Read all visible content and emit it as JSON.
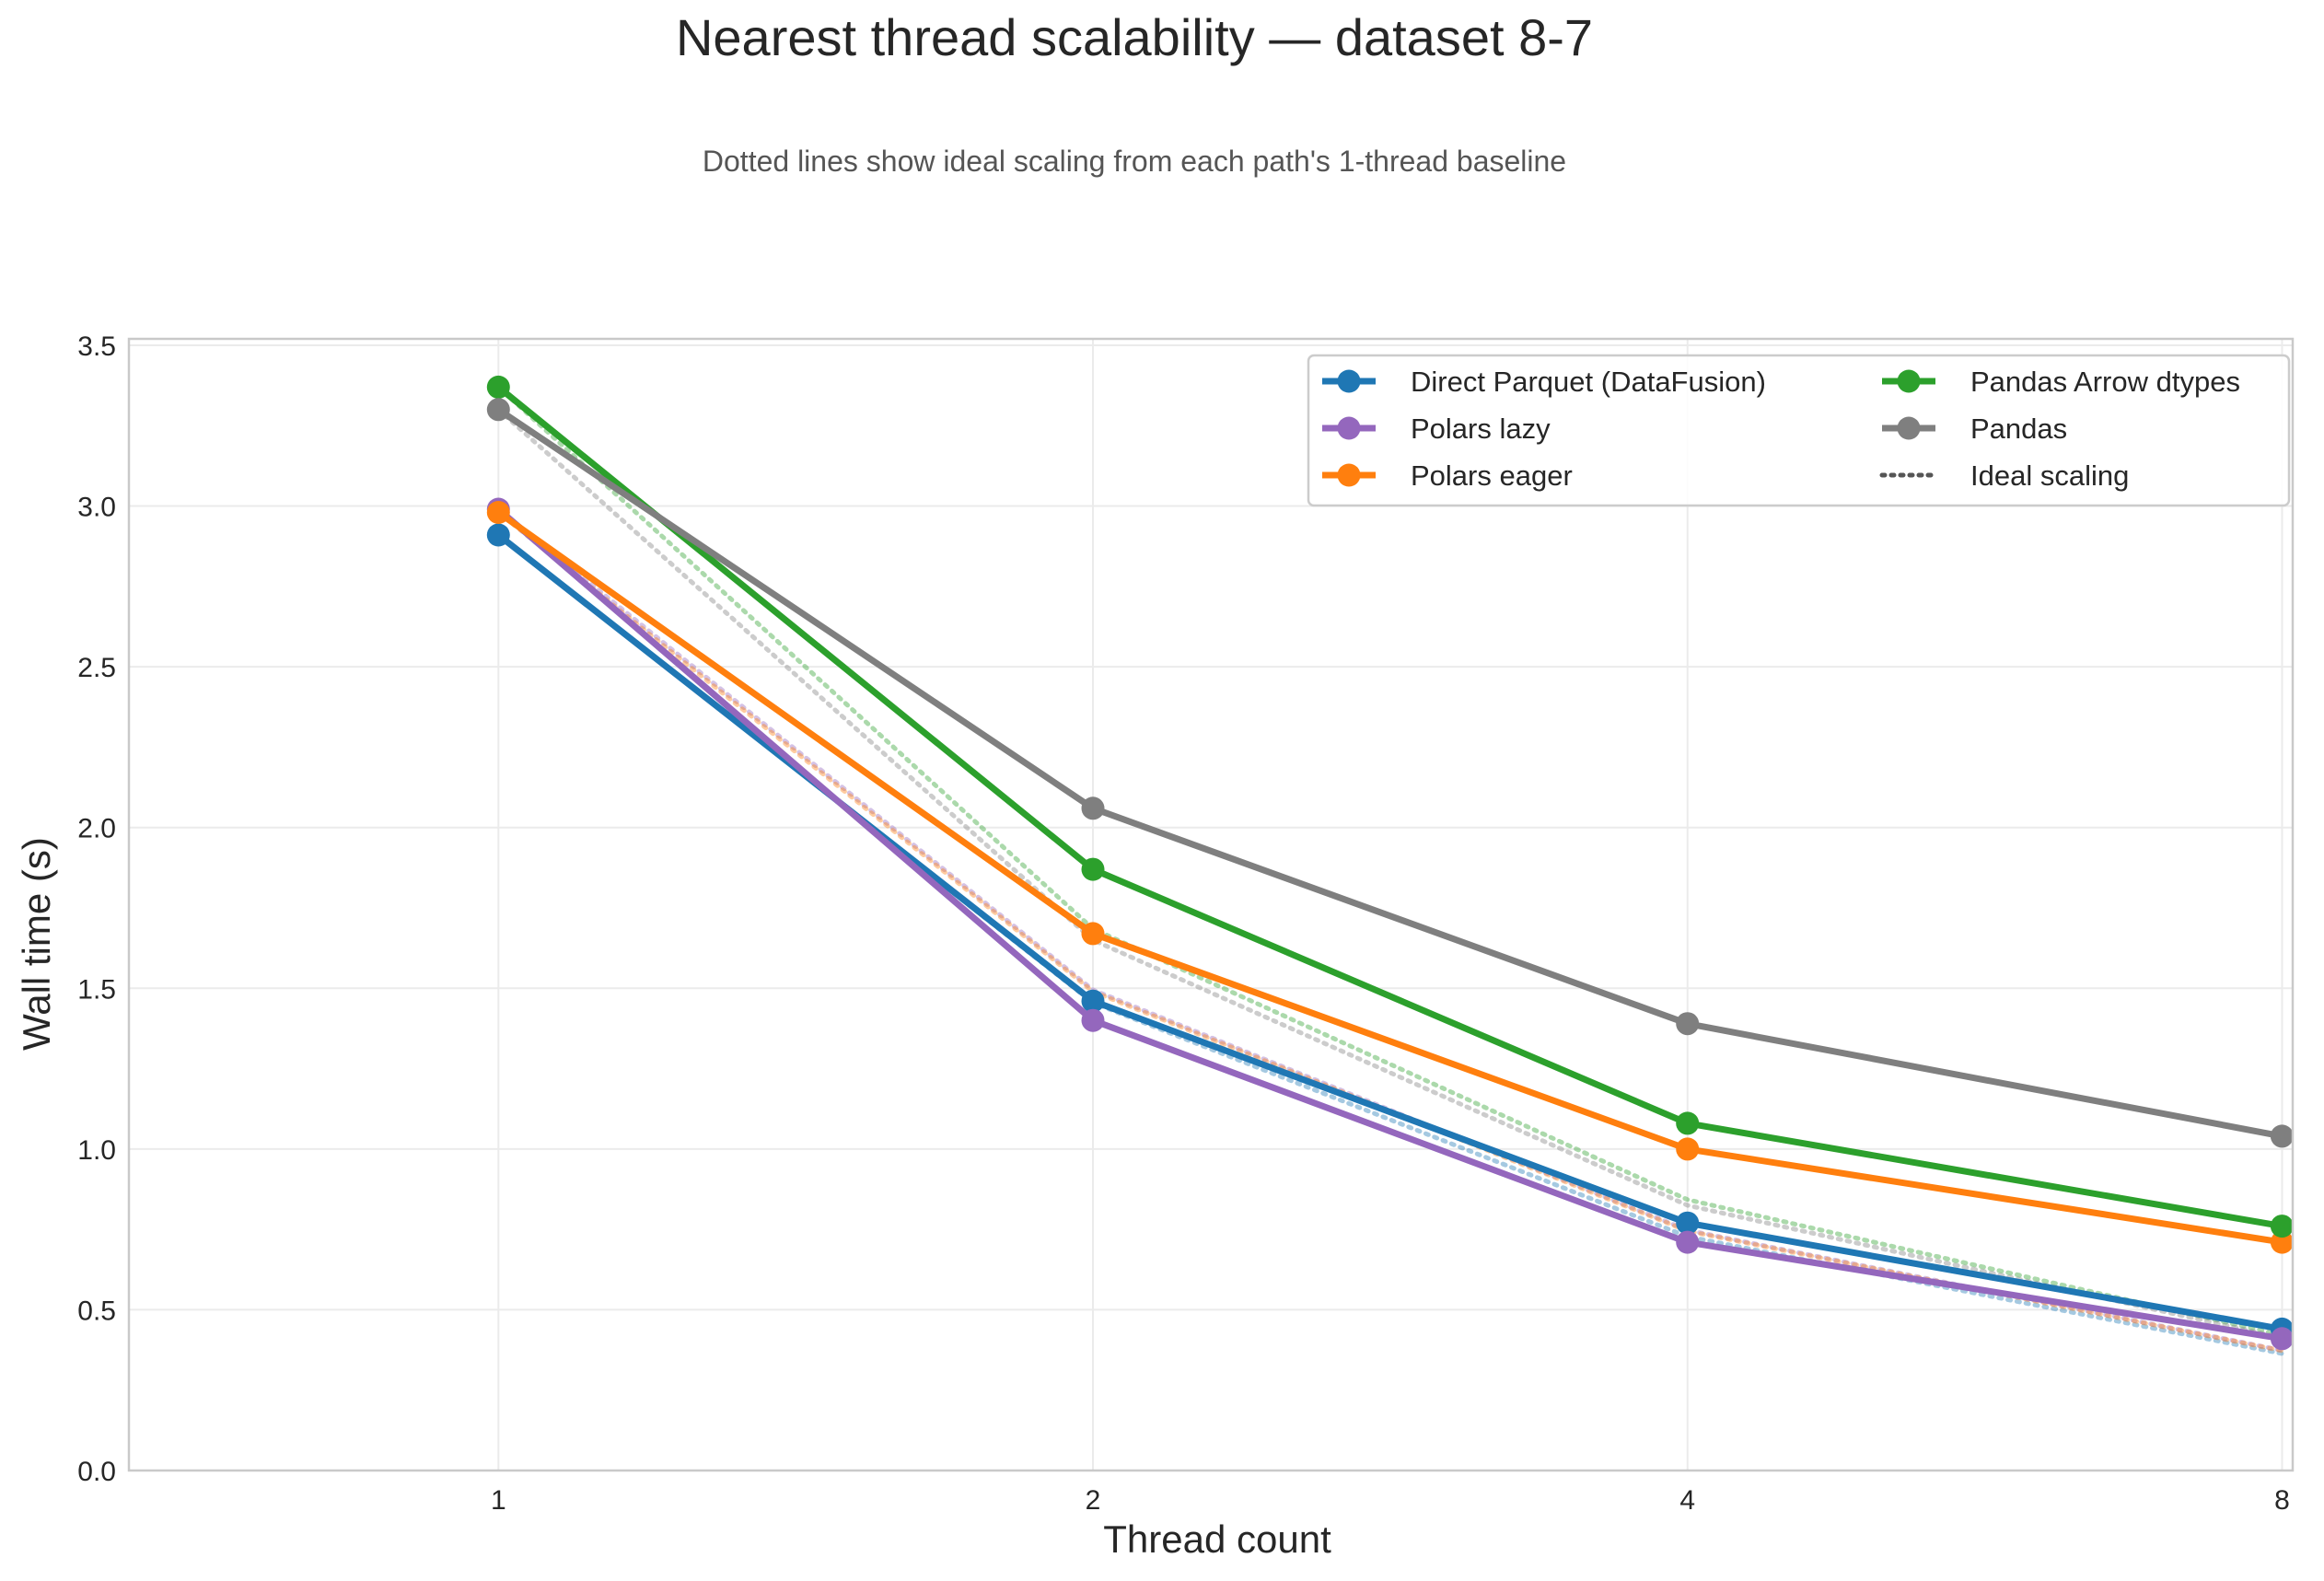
{
  "chart_data": {
    "type": "line",
    "title": "Nearest thread scalability — dataset 8-7",
    "subtitle": "Dotted lines show ideal scaling from each path's 1-thread baseline",
    "xlabel": "Thread count",
    "ylabel": "Wall time (s)",
    "x": [
      1,
      2,
      4,
      8
    ],
    "x_ticks": [
      "1",
      "2",
      "4",
      "8"
    ],
    "y_ticks": [
      "0.0",
      "0.5",
      "1.0",
      "1.5",
      "2.0",
      "2.5",
      "3.0",
      "3.5"
    ],
    "xlim": [
      0.65,
      8.1
    ],
    "ylim": [
      0,
      3.52
    ],
    "x_scale": "log2",
    "grid": true,
    "legend_position": "top-right",
    "legend_columns": 2,
    "series": [
      {
        "name": "Direct Parquet (DataFusion)",
        "color": "#1f77b4",
        "values": [
          2.91,
          1.46,
          0.77,
          0.44
        ]
      },
      {
        "name": "Polars lazy",
        "color": "#9467bd",
        "values": [
          2.99,
          1.4,
          0.71,
          0.41
        ]
      },
      {
        "name": "Polars eager",
        "color": "#ff7f0e",
        "values": [
          2.98,
          1.67,
          1.0,
          0.71
        ]
      },
      {
        "name": "Pandas Arrow dtypes",
        "color": "#2ca02c",
        "values": [
          3.37,
          1.87,
          1.08,
          0.76
        ]
      },
      {
        "name": "Pandas",
        "color": "#7f7f7f",
        "values": [
          3.3,
          2.06,
          1.39,
          1.04
        ]
      }
    ],
    "ideal_legend_label": "Ideal scaling",
    "ideal_legend_color": "#555555",
    "legend_order": [
      0,
      1,
      2,
      3,
      4,
      "ideal"
    ]
  }
}
